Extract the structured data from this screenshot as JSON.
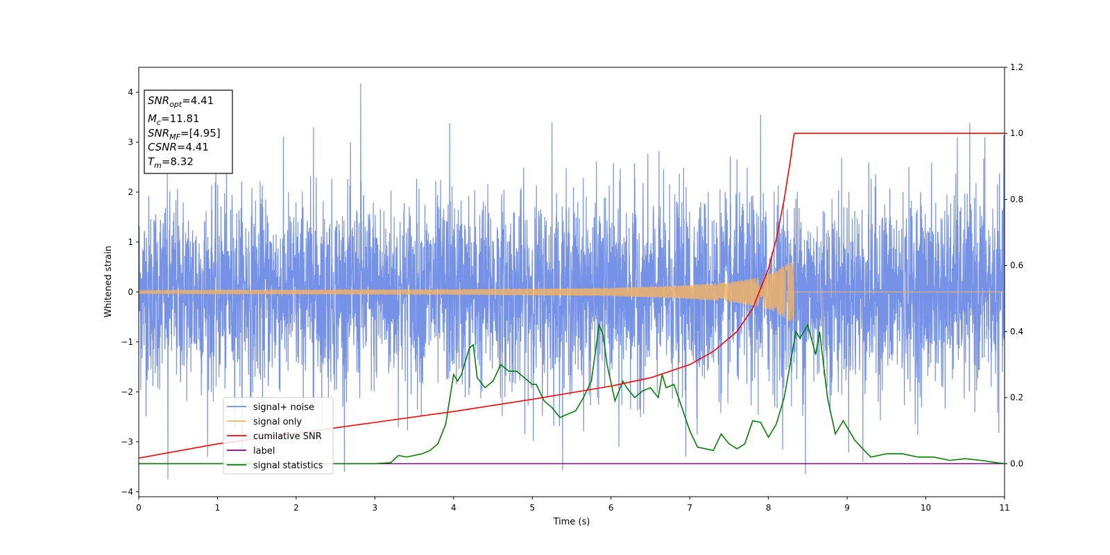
{
  "chart_data": {
    "type": "line",
    "title": "",
    "xlabel": "Time (s)",
    "ylabel": "Whitened strain",
    "y2label": "",
    "xlim": [
      0,
      11
    ],
    "ylim": [
      -4.1,
      4.5
    ],
    "y2lim": [
      -0.1,
      1.2
    ],
    "x_ticks": [
      0,
      1,
      2,
      3,
      4,
      5,
      6,
      7,
      8,
      9,
      10,
      11
    ],
    "y_ticks": [
      -4,
      -3,
      -2,
      -1,
      0,
      1,
      2,
      3,
      4
    ],
    "y_tick_labels": [
      "−4",
      "−3",
      "−2",
      "−1",
      "0",
      "1",
      "2",
      "3",
      "4"
    ],
    "y2_ticks": [
      0.0,
      0.2,
      0.4,
      0.6,
      0.8,
      1.0,
      1.2
    ],
    "y2_tick_labels": [
      "0.0",
      "0.2",
      "0.4",
      "0.6",
      "0.8",
      "1.0",
      "1.2"
    ],
    "grid": false,
    "legend_position": "lower-left",
    "merger_time": 8.32,
    "series": [
      {
        "name": "signal+ noise",
        "color": "#6e8ce6",
        "axis": "left",
        "description_values": "whitened noise, mean 0, std approx 1, peaks to ~4.2",
        "peaks": [
          [
            2.82,
            4.18
          ],
          [
            0.37,
            -3.75
          ],
          [
            8.47,
            -3.65
          ],
          [
            2.22,
            3.3
          ],
          [
            3.95,
            3.38
          ],
          [
            5.25,
            3.4
          ],
          [
            7.9,
            3.55
          ],
          [
            6.1,
            -3.1
          ],
          [
            6.95,
            -3.3
          ],
          [
            9.2,
            -3.4
          ],
          [
            10.4,
            3.1
          ],
          [
            10.75,
            3.1
          ]
        ]
      },
      {
        "name": "signal only",
        "color": "#f0b368",
        "axis": "left",
        "chirp_amplitude": [
          [
            0,
            0.03
          ],
          [
            4,
            0.05
          ],
          [
            6,
            0.08
          ],
          [
            7,
            0.14
          ],
          [
            7.5,
            0.2
          ],
          [
            7.9,
            0.3
          ],
          [
            8.1,
            0.42
          ],
          [
            8.25,
            0.58
          ],
          [
            8.32,
            0.62
          ]
        ]
      },
      {
        "name": "cumilative SNR",
        "color": "#ff0000",
        "axis": "right",
        "x": [
          0,
          1,
          2,
          3,
          4,
          5,
          6,
          6.5,
          7,
          7.3,
          7.6,
          7.8,
          8.0,
          8.1,
          8.2,
          8.28,
          8.32,
          8.33,
          11
        ],
        "values": [
          0.017,
          0.06,
          0.092,
          0.125,
          0.158,
          0.195,
          0.235,
          0.26,
          0.3,
          0.34,
          0.4,
          0.47,
          0.59,
          0.68,
          0.8,
          0.92,
          0.99,
          1.0,
          1.0
        ]
      },
      {
        "name": "label",
        "color": "#800080",
        "axis": "right",
        "x": [
          0,
          11
        ],
        "values": [
          0.0,
          0.0
        ]
      },
      {
        "name": "signal statistics",
        "color": "#008000",
        "axis": "right",
        "x": [
          0,
          1,
          2,
          3,
          3.2,
          3.3,
          3.4,
          3.5,
          3.6,
          3.7,
          3.8,
          3.9,
          4.0,
          4.05,
          4.1,
          4.2,
          4.25,
          4.3,
          4.4,
          4.5,
          4.6,
          4.7,
          4.8,
          4.9,
          5.0,
          5.05,
          5.15,
          5.25,
          5.35,
          5.45,
          5.55,
          5.65,
          5.75,
          5.85,
          5.9,
          5.95,
          6.05,
          6.15,
          6.2,
          6.3,
          6.4,
          6.5,
          6.6,
          6.65,
          6.7,
          6.8,
          6.9,
          7.0,
          7.1,
          7.2,
          7.3,
          7.4,
          7.5,
          7.6,
          7.7,
          7.8,
          7.9,
          8.0,
          8.1,
          8.2,
          8.35,
          8.4,
          8.5,
          8.6,
          8.65,
          8.75,
          8.85,
          8.95,
          9.1,
          9.3,
          9.5,
          9.7,
          9.9,
          10.1,
          10.3,
          10.5,
          10.7,
          10.9,
          11
        ],
        "values": [
          0.0,
          0.0,
          0.0,
          0.0,
          0.003,
          0.025,
          0.02,
          0.025,
          0.03,
          0.04,
          0.06,
          0.12,
          0.27,
          0.25,
          0.27,
          0.35,
          0.36,
          0.26,
          0.23,
          0.25,
          0.3,
          0.28,
          0.28,
          0.26,
          0.24,
          0.24,
          0.19,
          0.17,
          0.14,
          0.15,
          0.16,
          0.2,
          0.25,
          0.42,
          0.39,
          0.3,
          0.19,
          0.25,
          0.23,
          0.2,
          0.22,
          0.23,
          0.2,
          0.27,
          0.23,
          0.24,
          0.17,
          0.1,
          0.05,
          0.045,
          0.04,
          0.09,
          0.06,
          0.045,
          0.06,
          0.13,
          0.125,
          0.08,
          0.12,
          0.2,
          0.4,
          0.38,
          0.42,
          0.33,
          0.4,
          0.2,
          0.09,
          0.13,
          0.07,
          0.02,
          0.03,
          0.03,
          0.02,
          0.02,
          0.01,
          0.015,
          0.01,
          0.003,
          0.0
        ]
      }
    ]
  },
  "info_box": {
    "lines": [
      {
        "base": "SNR",
        "sub": "opt",
        "rest": "=4.41"
      },
      {
        "base": "M",
        "sub": "c",
        "rest": "=11.81"
      },
      {
        "base": "SNR",
        "sub": "MF",
        "rest": "=[4.95]"
      },
      {
        "base": "CSNR",
        "sub": "",
        "rest": "=4.41"
      },
      {
        "base": "T",
        "sub": "m",
        "rest": "=8.32"
      }
    ]
  },
  "legend": {
    "entries": [
      {
        "label": "signal+ noise",
        "color": "#6e8ce6"
      },
      {
        "label": "signal only",
        "color": "#f0b368"
      },
      {
        "label": "cumilative SNR",
        "color": "#ff0000"
      },
      {
        "label": "label",
        "color": "#800080"
      },
      {
        "label": "signal statistics",
        "color": "#008000"
      }
    ]
  }
}
